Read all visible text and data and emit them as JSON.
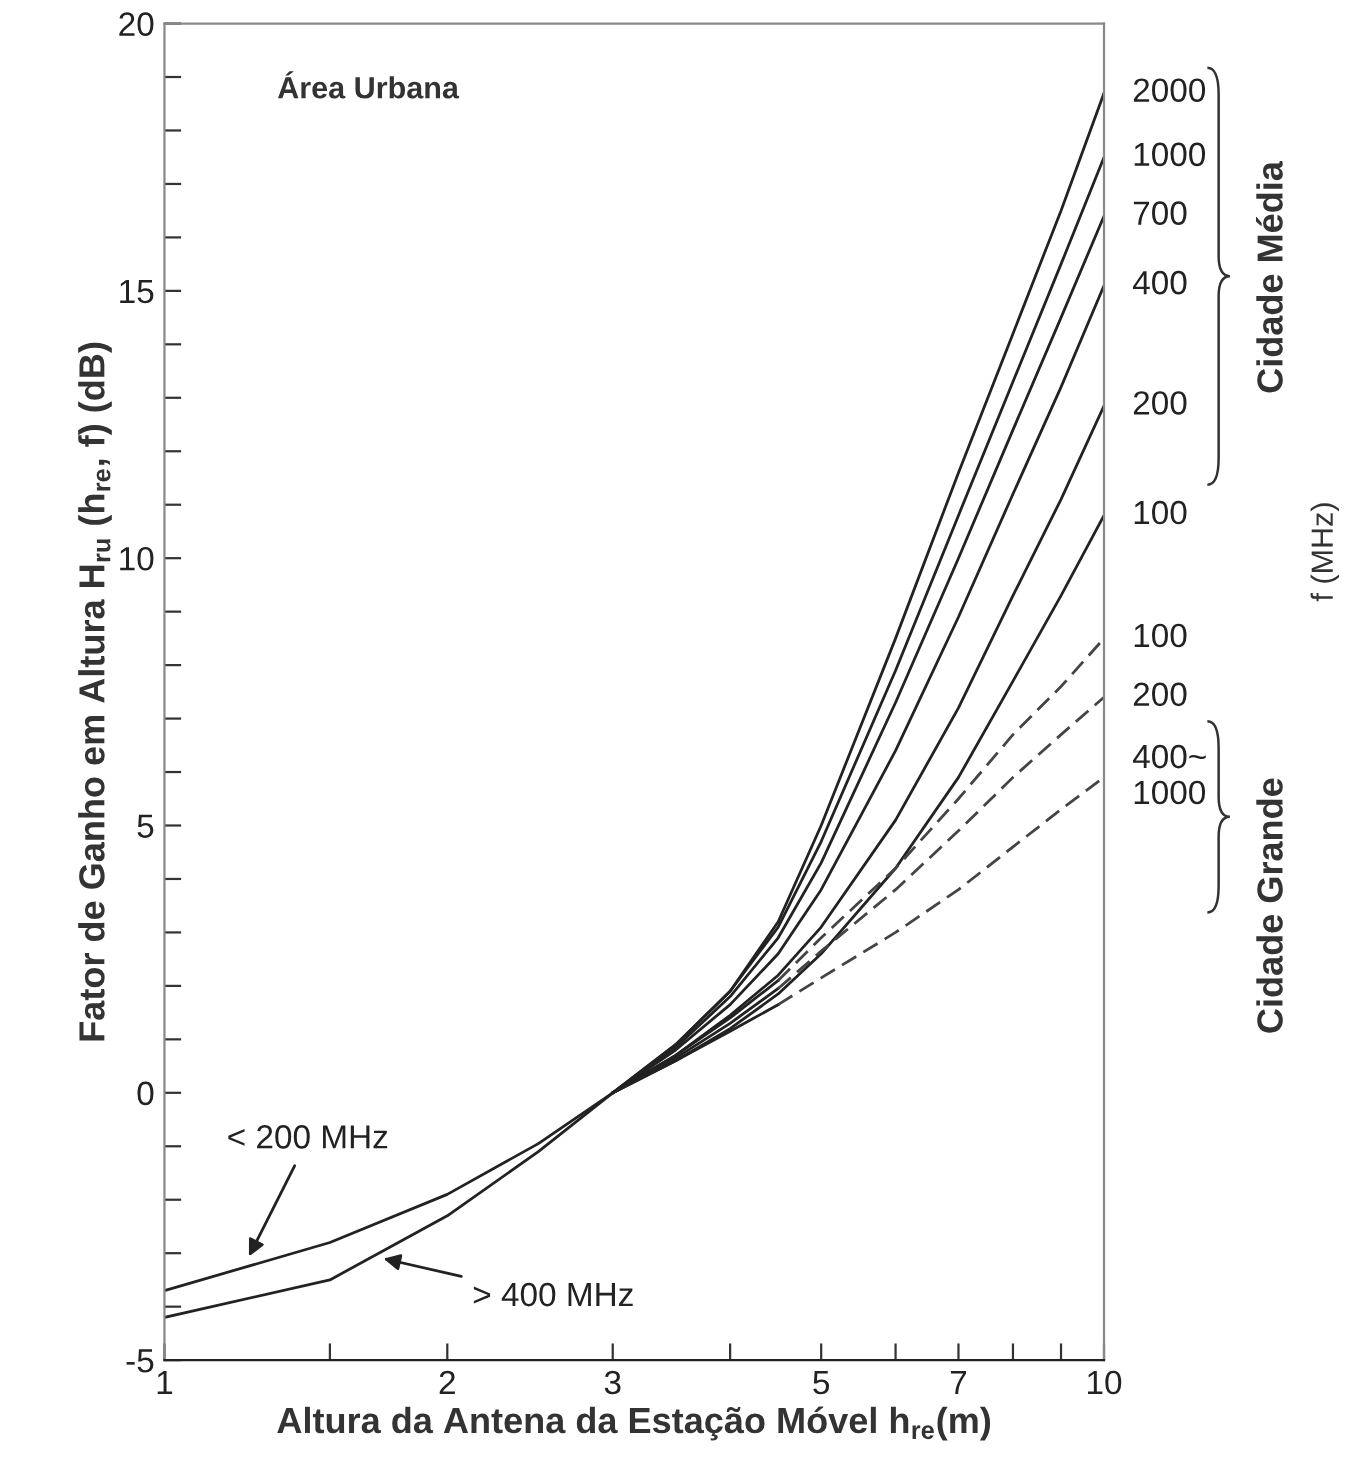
{
  "chart_data": {
    "type": "line",
    "xlabel": "Altura da Antena da Estação Móvel h$_{re}$(m)",
    "ylabel": "Fator de Ganho em Altura H$_{ru}$ (h$_{re}$, f) (dB)",
    "log": "x",
    "xlim": [
      1,
      10
    ],
    "ylim": [
      -5,
      20
    ],
    "xticks": [
      1,
      {
        "value": 1.5,
        "label": null
      },
      2,
      3,
      {
        "value": 4,
        "label": null
      },
      5,
      {
        "value": 6,
        "label": null
      },
      7,
      {
        "value": 8,
        "label": null
      },
      {
        "value": 9,
        "label": null
      },
      10
    ],
    "yticks": [
      -5,
      {
        "value": -4,
        "label": null
      },
      {
        "value": -3,
        "label": null
      },
      {
        "value": -2,
        "label": null
      },
      {
        "value": -1,
        "label": null
      },
      0,
      {
        "value": 1,
        "label": null
      },
      {
        "value": 2,
        "label": null
      },
      {
        "value": 3,
        "label": null
      },
      {
        "value": 4,
        "label": null
      },
      5,
      {
        "value": 6,
        "label": null
      },
      {
        "value": 7,
        "label": null
      },
      {
        "value": 8,
        "label": null
      },
      {
        "value": 9,
        "label": null
      },
      10,
      {
        "value": 11,
        "label": null
      },
      {
        "value": 12,
        "label": null
      },
      {
        "value": 13,
        "label": null
      },
      {
        "value": 14,
        "label": null
      },
      15,
      {
        "value": 16,
        "label": null
      },
      {
        "value": 17,
        "label": null
      },
      {
        "value": 18,
        "label": null
      },
      {
        "value": 19,
        "label": null
      },
      20
    ],
    "grid": false,
    "legend": false,
    "marker": "none",
    "series": [
      {
        "name": "2000",
        "color": "#222222",
        "line_style": "solid",
        "x": [
          3,
          3.5,
          4,
          4.5,
          5,
          6,
          7,
          8,
          9,
          10
        ],
        "values": [
          0,
          0.9,
          1.9,
          3.2,
          5.0,
          8.5,
          11.6,
          14.2,
          16.5,
          18.7
        ]
      },
      {
        "name": "1000",
        "color": "#222222",
        "line_style": "solid",
        "x": [
          3,
          3.5,
          4,
          4.5,
          5,
          6,
          7,
          8,
          9,
          10
        ],
        "values": [
          0,
          0.9,
          1.9,
          3.1,
          4.7,
          7.9,
          10.8,
          13.3,
          15.5,
          17.5
        ]
      },
      {
        "name": "700",
        "color": "#222222",
        "line_style": "solid",
        "x": [
          3,
          3.5,
          4,
          4.5,
          5,
          6,
          7,
          8,
          9,
          10
        ],
        "values": [
          0,
          0.85,
          1.8,
          2.9,
          4.3,
          7.3,
          10.0,
          12.4,
          14.5,
          16.4
        ]
      },
      {
        "name": "400",
        "color": "#222222",
        "line_style": "solid",
        "x": [
          3,
          3.5,
          4,
          4.5,
          5,
          6,
          7,
          8,
          9,
          10
        ],
        "values": [
          0,
          0.8,
          1.65,
          2.6,
          3.8,
          6.4,
          8.9,
          11.2,
          13.2,
          15.1
        ]
      },
      {
        "name": "200",
        "color": "#222222",
        "line_style": "solid",
        "x": [
          3,
          3.5,
          4,
          4.5,
          5,
          6,
          7,
          8,
          9,
          10
        ],
        "values": [
          0,
          0.7,
          1.45,
          2.2,
          3.1,
          5.1,
          7.2,
          9.3,
          11.1,
          12.85
        ]
      },
      {
        "name": "100",
        "color": "#222222",
        "line_style": "solid",
        "x": [
          3,
          3.5,
          4,
          4.5,
          5,
          6,
          7,
          8,
          9,
          10
        ],
        "values": [
          0,
          0.6,
          1.2,
          1.85,
          2.6,
          4.2,
          5.9,
          7.7,
          9.3,
          10.8
        ]
      },
      {
        "color": "#222222",
        "line_style": "solid",
        "x": [
          1,
          1.5,
          2,
          2.5,
          3,
          3.5,
          4,
          4.5
        ],
        "values": [
          -3.7,
          -2.8,
          -1.9,
          -0.95,
          0,
          0.7,
          1.4,
          2.1
        ]
      },
      {
        "name": "100",
        "color": "#444444",
        "line_style": "dashed",
        "x": [
          4.5,
          5,
          6,
          7,
          8,
          9,
          10
        ],
        "values": [
          2.1,
          2.9,
          4.2,
          5.5,
          6.7,
          7.6,
          8.5
        ]
      },
      {
        "color": "#222222",
        "line_style": "solid",
        "x": [
          3,
          3.5,
          4,
          4.5
        ],
        "values": [
          0,
          0.65,
          1.3,
          1.95
        ]
      },
      {
        "name": "200",
        "color": "#444444",
        "line_style": "dashed",
        "x": [
          4.5,
          5,
          6,
          7,
          8,
          9,
          10
        ],
        "values": [
          1.95,
          2.65,
          3.8,
          4.9,
          5.9,
          6.7,
          7.4
        ]
      },
      {
        "color": "#222222",
        "line_style": "solid",
        "x": [
          1,
          1.5,
          2,
          2.5,
          3,
          3.5,
          4,
          4.5
        ],
        "values": [
          -4.2,
          -3.5,
          -2.3,
          -1.1,
          0,
          0.6,
          1.15,
          1.65
        ]
      },
      {
        "name": "400~\n1000",
        "color": "#444444",
        "line_style": "dashed",
        "x": [
          4.5,
          5,
          6,
          7,
          8,
          9,
          10
        ],
        "values": [
          1.65,
          2.15,
          3.0,
          3.8,
          4.6,
          5.3,
          5.9
        ]
      }
    ],
    "annotations": [
      "Área Urbana",
      "Cidade Média",
      "Cidade Grande",
      "f (MHz)",
      {
        "text": "< 200 MHz",
        "x": 1.23,
        "y": -3.06
      },
      {
        "text": "> 400 MHz",
        "x": 1.71,
        "y": -3.1
      }
    ]
  }
}
